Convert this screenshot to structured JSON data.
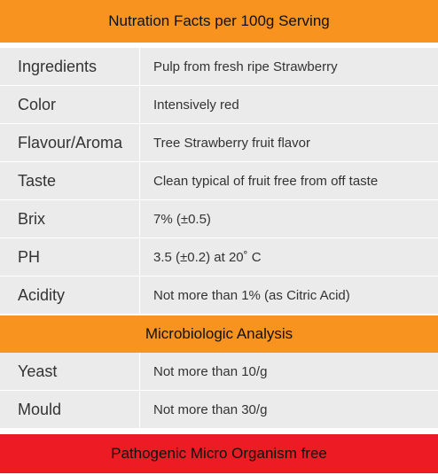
{
  "header": {
    "title": "Nutration Facts per 100g Serving"
  },
  "composition": {
    "rows": [
      {
        "label": "Ingredients",
        "value": "Pulp from fresh ripe Strawberry"
      },
      {
        "label": "Color",
        "value": "Intensively red"
      },
      {
        "label": "Flavour/Aroma",
        "value": "Tree Strawberry fruit flavor"
      },
      {
        "label": "Taste",
        "value": "Clean typical of fruit free from off taste"
      },
      {
        "label": "Brix",
        "value": "7% (±0.5)"
      },
      {
        "label": "PH",
        "value": "3.5 (±0.2) at 20˚ C"
      },
      {
        "label": "Acidity",
        "value": "Not more than 1% (as Citric Acid)"
      }
    ]
  },
  "micro_section": {
    "title": "Microbiologic Analysis",
    "rows": [
      {
        "label": "Yeast",
        "value": "Not more than 10/g"
      },
      {
        "label": "Mould",
        "value": "Not more than 30/g"
      }
    ]
  },
  "footer": {
    "title": "Pathogenic Micro Organism free"
  },
  "colors": {
    "header_band": "#f7931e",
    "footer_band": "#ed1c24",
    "row_background": "#ebebeb"
  }
}
